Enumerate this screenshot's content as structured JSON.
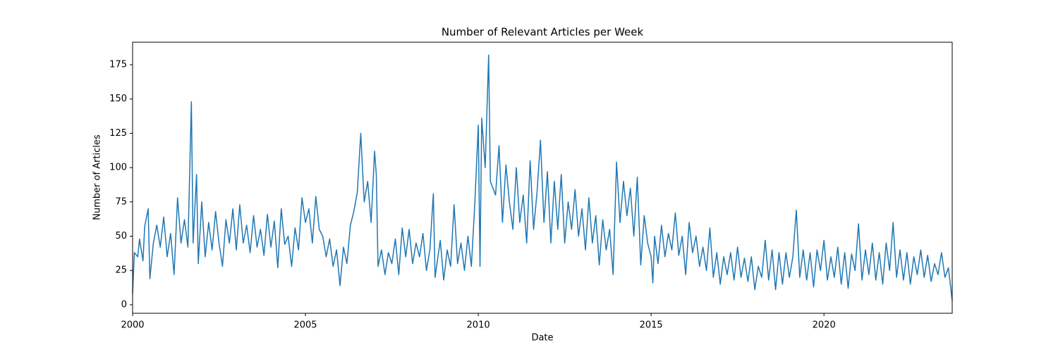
{
  "chart_data": {
    "type": "line",
    "title": "Number of Relevant Articles per Week",
    "x_label": "Date",
    "y_label": "Number of Articles",
    "x": [
      2000.0,
      2000.05,
      2000.15,
      2000.2,
      2000.3,
      2000.35,
      2000.45,
      2000.5,
      2000.6,
      2000.7,
      2000.8,
      2000.9,
      2001.0,
      2001.1,
      2001.2,
      2001.3,
      2001.4,
      2001.5,
      2001.6,
      2001.7,
      2001.75,
      2001.85,
      2001.9,
      2002.0,
      2002.1,
      2002.2,
      2002.3,
      2002.4,
      2002.5,
      2002.6,
      2002.7,
      2002.8,
      2002.9,
      2003.0,
      2003.1,
      2003.2,
      2003.3,
      2003.4,
      2003.5,
      2003.6,
      2003.7,
      2003.8,
      2003.9,
      2004.0,
      2004.1,
      2004.2,
      2004.3,
      2004.4,
      2004.5,
      2004.6,
      2004.7,
      2004.8,
      2004.9,
      2005.0,
      2005.1,
      2005.2,
      2005.3,
      2005.4,
      2005.5,
      2005.6,
      2005.7,
      2005.8,
      2005.9,
      2006.0,
      2006.1,
      2006.2,
      2006.3,
      2006.4,
      2006.5,
      2006.6,
      2006.7,
      2006.8,
      2006.9,
      2007.0,
      2007.05,
      2007.1,
      2007.2,
      2007.3,
      2007.4,
      2007.5,
      2007.6,
      2007.7,
      2007.8,
      2007.9,
      2008.0,
      2008.1,
      2008.2,
      2008.3,
      2008.4,
      2008.5,
      2008.6,
      2008.7,
      2008.75,
      2008.9,
      2009.0,
      2009.1,
      2009.2,
      2009.3,
      2009.4,
      2009.5,
      2009.6,
      2009.7,
      2009.8,
      2009.9,
      2010.0,
      2010.05,
      2010.1,
      2010.2,
      2010.3,
      2010.35,
      2010.5,
      2010.6,
      2010.7,
      2010.8,
      2010.9,
      2011.0,
      2011.1,
      2011.2,
      2011.3,
      2011.4,
      2011.5,
      2011.6,
      2011.7,
      2011.8,
      2011.9,
      2012.0,
      2012.1,
      2012.2,
      2012.3,
      2012.4,
      2012.5,
      2012.6,
      2012.7,
      2012.8,
      2012.9,
      2013.0,
      2013.1,
      2013.2,
      2013.3,
      2013.4,
      2013.5,
      2013.6,
      2013.7,
      2013.8,
      2013.9,
      2014.0,
      2014.1,
      2014.2,
      2014.3,
      2014.4,
      2014.5,
      2014.6,
      2014.7,
      2014.8,
      2014.9,
      2015.0,
      2015.05,
      2015.1,
      2015.2,
      2015.3,
      2015.4,
      2015.5,
      2015.6,
      2015.7,
      2015.8,
      2015.9,
      2016.0,
      2016.1,
      2016.2,
      2016.3,
      2016.4,
      2016.5,
      2016.6,
      2016.7,
      2016.8,
      2016.9,
      2017.0,
      2017.1,
      2017.2,
      2017.3,
      2017.4,
      2017.5,
      2017.6,
      2017.7,
      2017.8,
      2017.9,
      2018.0,
      2018.1,
      2018.2,
      2018.3,
      2018.4,
      2018.5,
      2018.6,
      2018.7,
      2018.8,
      2018.9,
      2019.0,
      2019.1,
      2019.2,
      2019.3,
      2019.4,
      2019.5,
      2019.6,
      2019.7,
      2019.8,
      2019.9,
      2020.0,
      2020.1,
      2020.2,
      2020.3,
      2020.4,
      2020.5,
      2020.6,
      2020.7,
      2020.8,
      2020.9,
      2021.0,
      2021.1,
      2021.2,
      2021.3,
      2021.4,
      2021.5,
      2021.6,
      2021.7,
      2021.8,
      2021.9,
      2022.0,
      2022.1,
      2022.2,
      2022.3,
      2022.4,
      2022.5,
      2022.6,
      2022.7,
      2022.8,
      2022.9,
      2023.0,
      2023.1,
      2023.2,
      2023.3,
      2023.4,
      2023.5,
      2023.6,
      2023.71
    ],
    "series": [
      {
        "color": "#1f77b4",
        "values": [
          8,
          38,
          35,
          48,
          32,
          57,
          70,
          19,
          45,
          58,
          42,
          64,
          35,
          52,
          22,
          78,
          45,
          62,
          42,
          148,
          45,
          95,
          30,
          75,
          35,
          60,
          40,
          68,
          45,
          28,
          62,
          45,
          70,
          40,
          73,
          45,
          58,
          38,
          65,
          42,
          55,
          36,
          66,
          42,
          61,
          27,
          70,
          44,
          50,
          28,
          56,
          40,
          78,
          60,
          70,
          45,
          79,
          55,
          50,
          35,
          48,
          28,
          40,
          14,
          42,
          30,
          58,
          68,
          82,
          125,
          75,
          90,
          60,
          112,
          95,
          28,
          40,
          22,
          38,
          30,
          48,
          22,
          56,
          35,
          55,
          30,
          45,
          35,
          52,
          25,
          40,
          81,
          20,
          47,
          18,
          40,
          28,
          73,
          30,
          45,
          25,
          50,
          28,
          74,
          131,
          28,
          136,
          100,
          182,
          90,
          80,
          116,
          60,
          102,
          75,
          55,
          100,
          60,
          80,
          45,
          105,
          55,
          82,
          120,
          60,
          97,
          45,
          90,
          55,
          95,
          45,
          75,
          55,
          84,
          50,
          70,
          40,
          78,
          45,
          65,
          29,
          62,
          40,
          55,
          22,
          104,
          60,
          90,
          65,
          85,
          50,
          93,
          29,
          65,
          45,
          35,
          16,
          50,
          30,
          58,
          35,
          52,
          40,
          67,
          36,
          50,
          22,
          60,
          38,
          50,
          28,
          42,
          25,
          56,
          20,
          38,
          15,
          35,
          22,
          38,
          18,
          42,
          20,
          34,
          17,
          35,
          11,
          28,
          20,
          47,
          18,
          40,
          11,
          38,
          15,
          38,
          20,
          35,
          69,
          20,
          40,
          18,
          38,
          13,
          40,
          25,
          47,
          18,
          35,
          20,
          42,
          15,
          38,
          12,
          37,
          25,
          59,
          18,
          40,
          22,
          45,
          18,
          38,
          15,
          45,
          25,
          60,
          20,
          40,
          18,
          38,
          15,
          35,
          22,
          40,
          20,
          36,
          17,
          30,
          22,
          38,
          20,
          27,
          3
        ]
      }
    ],
    "xlim": [
      2000,
      2023.71
    ],
    "xticks": [
      2000,
      2005,
      2010,
      2015,
      2020
    ],
    "ylim": [
      -6.2,
      191.4
    ],
    "yticks": [
      0,
      25,
      50,
      75,
      100,
      125,
      150,
      175
    ]
  }
}
